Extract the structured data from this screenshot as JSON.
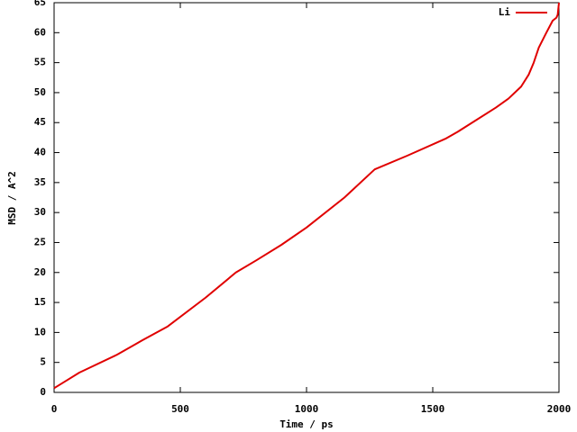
{
  "chart_data": {
    "type": "line",
    "xlabel": "Time / ps",
    "ylabel": "MSD / A^2",
    "x": [
      0,
      50,
      100,
      250,
      350,
      450,
      600,
      720,
      800,
      900,
      1000,
      1150,
      1270,
      1400,
      1550,
      1600,
      1750,
      1800,
      1850,
      1880,
      1900,
      1920,
      1950,
      1975,
      1990,
      1995,
      2000
    ],
    "series": [
      {
        "name": "Li",
        "color": "#e00000",
        "values": [
          0.7,
          2.0,
          3.3,
          6.3,
          8.7,
          11,
          15.8,
          20,
          22,
          24.6,
          27.5,
          32.5,
          37.2,
          39.5,
          42.3,
          43.5,
          47.5,
          49,
          51,
          53,
          55,
          57.5,
          60,
          62,
          62.5,
          63,
          65
        ]
      }
    ],
    "xlim": [
      0,
      2000
    ],
    "xticks": [
      0,
      500,
      1000,
      1500,
      2000
    ],
    "ylim": [
      0,
      65
    ],
    "yticks": [
      0,
      5,
      10,
      15,
      20,
      25,
      30,
      35,
      40,
      45,
      50,
      55,
      60,
      65
    ],
    "legend": "upper right"
  }
}
